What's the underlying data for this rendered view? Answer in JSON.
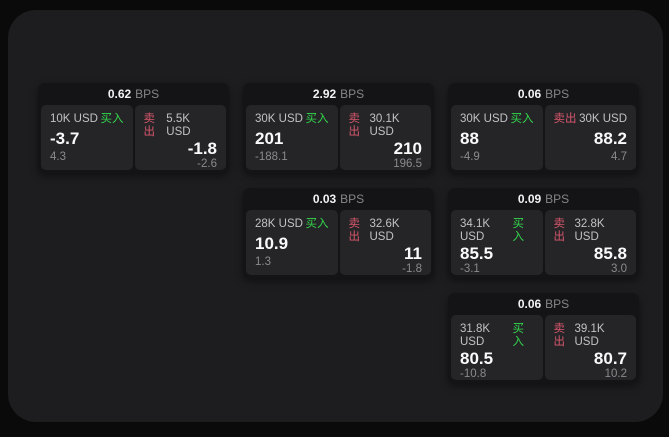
{
  "page": {
    "background_color": "#0a0a0b",
    "panel_color": "#1d1d1f"
  },
  "colors": {
    "buy_accent": "#32d74b",
    "sell_accent": "#d8566b",
    "card_bg": "#141416",
    "tile_bg": "#252528"
  },
  "labels": {
    "bps_unit": "BPS",
    "buy": "买入",
    "sell": "卖出"
  },
  "cards": [
    {
      "row": 1,
      "col": 1,
      "bps": "0.62",
      "buy": {
        "amount": "10K USD",
        "value": "-3.7",
        "delta": "4.3"
      },
      "sell": {
        "amount": "5.5K USD",
        "value": "-1.8",
        "delta": "-2.6"
      }
    },
    {
      "row": 1,
      "col": 2,
      "bps": "2.92",
      "buy": {
        "amount": "30K USD",
        "value": "201",
        "delta": "-188.1"
      },
      "sell": {
        "amount": "30.1K USD",
        "value": "210",
        "delta": "196.5"
      }
    },
    {
      "row": 1,
      "col": 3,
      "bps": "0.06",
      "buy": {
        "amount": "30K USD",
        "value": "88",
        "delta": "-4.9"
      },
      "sell": {
        "amount": "30K USD",
        "value": "88.2",
        "delta": "4.7"
      }
    },
    {
      "row": 2,
      "col": 2,
      "bps": "0.03",
      "buy": {
        "amount": "28K USD",
        "value": "10.9",
        "delta": "1.3"
      },
      "sell": {
        "amount": "32.6K USD",
        "value": "11",
        "delta": "-1.8"
      }
    },
    {
      "row": 2,
      "col": 3,
      "bps": "0.09",
      "buy": {
        "amount": "34.1K USD",
        "value": "85.5",
        "delta": "-3.1"
      },
      "sell": {
        "amount": "32.8K USD",
        "value": "85.8",
        "delta": "3.0"
      }
    },
    {
      "row": 3,
      "col": 3,
      "bps": "0.06",
      "buy": {
        "amount": "31.8K USD",
        "value": "80.5",
        "delta": "-10.8"
      },
      "sell": {
        "amount": "39.1K USD",
        "value": "80.7",
        "delta": "10.2"
      }
    }
  ]
}
